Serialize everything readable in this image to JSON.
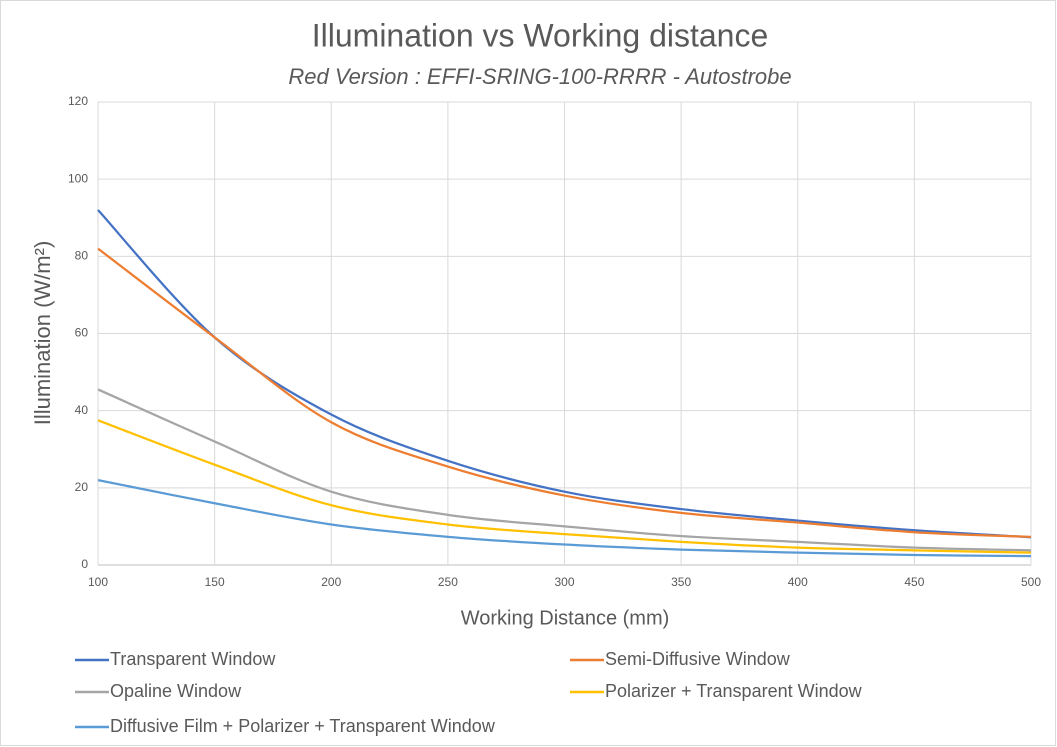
{
  "chart_data": {
    "type": "line",
    "title": "Illumination vs Working distance",
    "subtitle": "Red Version : EFFI-SRING-100-RRRR - Autostrobe",
    "x_label": "Working Distance (mm)",
    "y_label": "Illumination (W/m²)",
    "x": [
      100,
      150,
      200,
      250,
      300,
      350,
      400,
      450,
      500
    ],
    "series": [
      {
        "name": "Transparent Window",
        "color": "#4472c4",
        "values": [
          92,
          59,
          39,
          27,
          19,
          14.5,
          11.5,
          9,
          7.2
        ]
      },
      {
        "name": "Semi-Diffusive Window",
        "color": "#ed7d31",
        "values": [
          82,
          59,
          37,
          25.5,
          18,
          13.5,
          11,
          8.5,
          7.3
        ]
      },
      {
        "name": "Opaline Window",
        "color": "#a5a5a5",
        "values": [
          45.5,
          32,
          19,
          13,
          10,
          7.5,
          6,
          4.5,
          3.8
        ]
      },
      {
        "name": "Polarizer + Transparent Window",
        "color": "#ffc000",
        "values": [
          37.5,
          26,
          15.5,
          10.5,
          8,
          6,
          4.5,
          3.8,
          3.2
        ]
      },
      {
        "name": "Diffusive Film + Polarizer + Transparent Window",
        "color": "#5b9bd5",
        "values": [
          22,
          16,
          10.5,
          7.3,
          5.3,
          4,
          3.2,
          2.6,
          2.3
        ]
      }
    ],
    "xlim": [
      100,
      500
    ],
    "xticks": [
      100,
      150,
      200,
      250,
      300,
      350,
      400,
      450,
      500
    ],
    "ylim": [
      0,
      120
    ],
    "yticks": [
      0,
      20,
      40,
      60,
      80,
      100,
      120
    ],
    "grid": true,
    "legend": "bottom"
  }
}
